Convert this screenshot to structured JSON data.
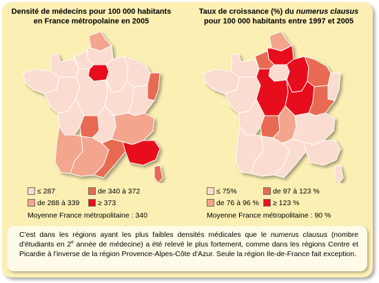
{
  "colors": {
    "class1": "#fbdcd0",
    "class2": "#f3a58e",
    "class3": "#e86a52",
    "class4": "#e8101c",
    "border": "#ffffff",
    "background": "#fcefb4"
  },
  "left_map": {
    "title_line1": "Densité de médecins pour 100 000 habitants",
    "title_line2": "en France métropolaine en 2005",
    "legend": [
      {
        "label": "≤ 287",
        "color_key": "class1"
      },
      {
        "label": "de 340 à 372",
        "color_key": "class3"
      },
      {
        "label": "de 288 à 339",
        "color_key": "class2"
      },
      {
        "label": "≥ 373",
        "color_key": "class4"
      }
    ],
    "average": "Moyenne France métropolitaine : 340"
  },
  "right_map": {
    "title_line1_prefix": "Taux de croissance (%) du ",
    "title_line1_em": "numerus clausus",
    "title_line2": "pour 100 000 habitants entre 1997 et 2005",
    "legend": [
      {
        "label": "≤ 75%",
        "color_key": "class1"
      },
      {
        "label": "de 97 à 123 %",
        "color_key": "class3"
      },
      {
        "label": "de 76 à  96 %",
        "color_key": "class2"
      },
      {
        "label": "≥ 123 %",
        "color_key": "class4"
      }
    ],
    "average": "Moyenne France métropolitaine : 90 %"
  },
  "note": {
    "part1": "C'est dans les régions ayant les plus faibles densités médicales que le ",
    "part1_em": "numerus clausus",
    "part2": " (nombre d'étudiants en 2",
    "part2_sup": "e",
    "part3": " année de médecine) a été relevé le plus fortement, comme dans les régions Centre et Picardie à l'inverse de la région Provence-Alpes-Côte d'Azur. Seule la région Ile-de-France fait exception."
  },
  "regions": {
    "left": {
      "nord": "class2",
      "picardie": "class1",
      "haute-normandie": "class1",
      "basse-normandie": "class1",
      "bretagne": "class1",
      "ile-de-france": "class4",
      "champagne": "class1",
      "lorraine": "class1",
      "alsace": "class3",
      "pays-de-la-loire": "class1",
      "centre": "class1",
      "bourgogne": "class1",
      "franche-comte": "class1",
      "poitou-charentes": "class1",
      "limousin": "class3",
      "auvergne": "class1",
      "rhone-alpes": "class2",
      "aquitaine": "class2",
      "midi-pyrenees": "class2",
      "languedoc": "class3",
      "paca": "class4",
      "corse": "class3"
    },
    "right": {
      "nord": "class2",
      "picardie": "class4",
      "haute-normandie": "class3",
      "basse-normandie": "class1",
      "bretagne": "class1",
      "ile-de-france": "class1",
      "champagne": "class4",
      "lorraine": "class3",
      "alsace": "class1",
      "pays-de-la-loire": "class1",
      "centre": "class4",
      "bourgogne": "class4",
      "franche-comte": "class3",
      "poitou-charentes": "class1",
      "limousin": "class3",
      "auvergne": "class2",
      "rhone-alpes": "class1",
      "aquitaine": "class1",
      "midi-pyrenees": "class1",
      "languedoc": "class1",
      "paca": "class1",
      "corse": "class1"
    }
  }
}
